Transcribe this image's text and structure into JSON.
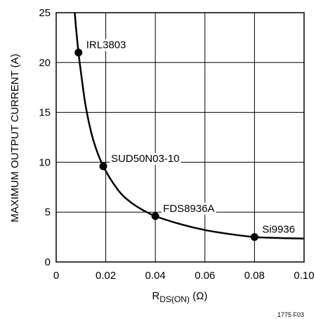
{
  "chart_data": {
    "type": "line",
    "ylabel": "MAXIMUM OUTPUT CURRENT (A)",
    "xlabel": {
      "main": "R",
      "sub": "DS(ON)",
      "unit": " (Ω)"
    },
    "xlim": [
      0,
      0.1
    ],
    "ylim": [
      0,
      25
    ],
    "x_ticks": [
      "0",
      "0.02",
      "0.04",
      "0.06",
      "0.08",
      "0.10"
    ],
    "x_tick_values": [
      0,
      0.02,
      0.04,
      0.06,
      0.08,
      0.1
    ],
    "y_ticks": [
      "0",
      "5",
      "10",
      "15",
      "20",
      "25"
    ],
    "y_tick_values": [
      0,
      5,
      10,
      15,
      20,
      25
    ],
    "grid": true,
    "curve": {
      "x": [
        0.0075,
        0.008,
        0.009,
        0.01,
        0.012,
        0.015,
        0.019,
        0.025,
        0.03,
        0.035,
        0.04,
        0.05,
        0.06,
        0.07,
        0.08,
        0.09,
        0.1
      ],
      "y": [
        25,
        23.5,
        21,
        19,
        15.5,
        12.2,
        9.6,
        7.2,
        6.0,
        5.2,
        4.6,
        3.8,
        3.2,
        2.8,
        2.5,
        2.4,
        2.35
      ]
    },
    "points": [
      {
        "label": "IRL3803",
        "x": 0.009,
        "y": 21
      },
      {
        "label": "SUD50N03-10",
        "x": 0.019,
        "y": 9.6
      },
      {
        "label": "FDS8936A",
        "x": 0.04,
        "y": 4.6
      },
      {
        "label": "Si9936",
        "x": 0.08,
        "y": 2.5
      }
    ]
  },
  "figure_id": "1775 F03"
}
